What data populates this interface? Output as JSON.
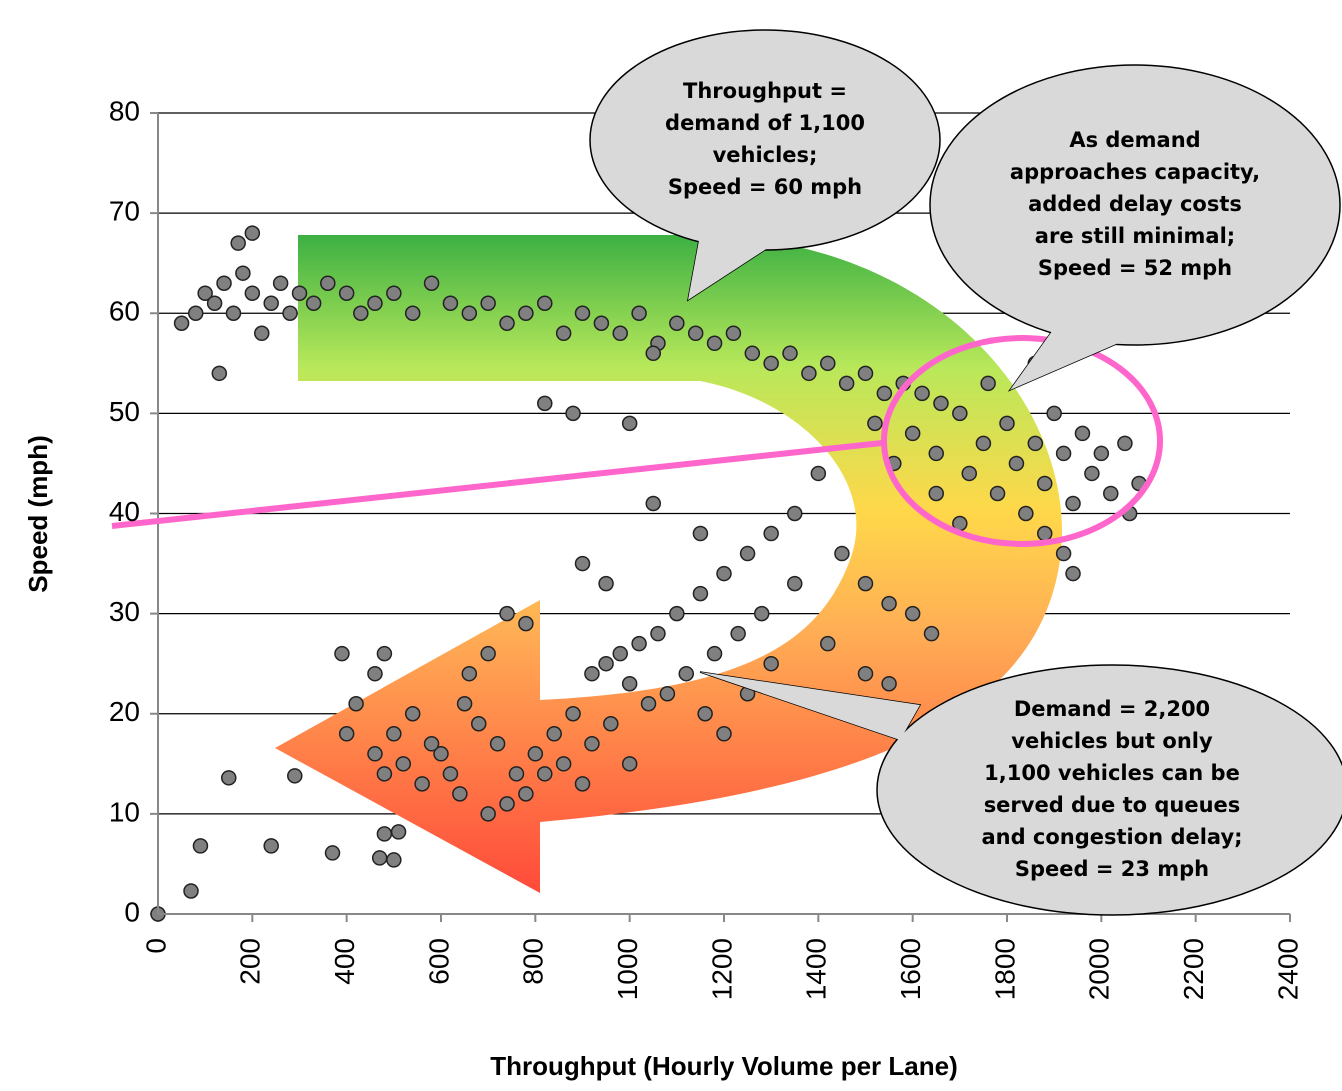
{
  "chart_data": {
    "type": "scatter",
    "xlabel": "Throughput (Hourly Volume per Lane)",
    "ylabel": "Speed (mph)",
    "xlim": [
      0,
      2400
    ],
    "ylim": [
      0,
      80
    ],
    "xticks": [
      0,
      200,
      400,
      600,
      800,
      1000,
      1200,
      1400,
      1600,
      1800,
      2000,
      2200,
      2400
    ],
    "yticks": [
      0,
      10,
      20,
      30,
      40,
      50,
      60,
      70,
      80
    ],
    "grid": true,
    "color": "#808080",
    "x": [
      50,
      80,
      100,
      120,
      140,
      160,
      180,
      200,
      220,
      240,
      260,
      280,
      300,
      330,
      360,
      400,
      430,
      460,
      500,
      540,
      580,
      620,
      660,
      700,
      740,
      780,
      820,
      860,
      900,
      940,
      980,
      1020,
      1060,
      1100,
      1140,
      1180,
      1220,
      1260,
      1300,
      1340,
      1380,
      1420,
      1460,
      1500,
      1540,
      1580,
      1620,
      1660,
      170,
      200,
      130,
      1050,
      820,
      880,
      1000,
      1600,
      1650,
      1700,
      1720,
      1750,
      1780,
      1800,
      1820,
      1840,
      1860,
      1880,
      1900,
      1920,
      1940,
      1960,
      1980,
      2000,
      2020,
      2050,
      2080,
      2060,
      1760,
      1860,
      1700,
      1650,
      1560,
      1520,
      1920,
      1940,
      1880,
      1400,
      1350,
      1300,
      1250,
      1200,
      1150,
      1100,
      1060,
      1020,
      980,
      950,
      920,
      1450,
      1500,
      1550,
      1600,
      1640,
      1280,
      1230,
      1180,
      1120,
      1080,
      1040,
      1000,
      1160,
      1200,
      1500,
      1550,
      1050,
      1150,
      1350,
      1420,
      1250,
      900,
      950,
      1300,
      880,
      840,
      800,
      760,
      720,
      680,
      650,
      620,
      600,
      560,
      520,
      480,
      460,
      500,
      540,
      580,
      640,
      700,
      740,
      780,
      820,
      860,
      900,
      920,
      960,
      1000,
      660,
      700,
      740,
      780,
      480,
      460,
      420,
      400,
      390,
      0,
      70,
      90,
      150,
      240,
      290,
      370,
      480,
      510,
      470,
      500
    ],
    "y": [
      59,
      60,
      62,
      61,
      63,
      60,
      64,
      62,
      58,
      61,
      63,
      60,
      62,
      61,
      63,
      62,
      60,
      61,
      62,
      60,
      63,
      61,
      60,
      61,
      59,
      60,
      61,
      58,
      60,
      59,
      58,
      60,
      57,
      59,
      58,
      57,
      58,
      56,
      55,
      56,
      54,
      55,
      53,
      54,
      52,
      53,
      52,
      51,
      67,
      68,
      54,
      56,
      51,
      50,
      49,
      48,
      46,
      50,
      44,
      47,
      42,
      49,
      45,
      40,
      47,
      43,
      50,
      46,
      41,
      48,
      44,
      46,
      42,
      47,
      43,
      40,
      53,
      55,
      39,
      42,
      45,
      49,
      36,
      34,
      38,
      44,
      40,
      38,
      36,
      34,
      32,
      30,
      28,
      27,
      26,
      25,
      24,
      36,
      33,
      31,
      30,
      28,
      30,
      28,
      26,
      24,
      22,
      21,
      23,
      20,
      18,
      24,
      23,
      41,
      38,
      33,
      27,
      22,
      35,
      33,
      25,
      20,
      18,
      16,
      14,
      17,
      19,
      21,
      14,
      16,
      13,
      15,
      14,
      16,
      18,
      20,
      17,
      12,
      10,
      11,
      12,
      14,
      15,
      13,
      17,
      19,
      15,
      24,
      26,
      30,
      29,
      26,
      24,
      21,
      18,
      26,
      0,
      2.3,
      6.8,
      13.6,
      6.8,
      13.8,
      6.1,
      8,
      8.2,
      5.6,
      5.4
    ],
    "annotations": [
      {
        "lines": [
          "Throughput  =",
          "demand of 1,100",
          "vehicles;",
          "Speed = 60 mph"
        ]
      },
      {
        "lines": [
          "As demand",
          "approaches capacity,",
          "added delay costs",
          "are still minimal;",
          "Speed = 52 mph"
        ]
      },
      {
        "lines": [
          "Demand = 2,200",
          "vehicles but only",
          "1,100 vehicles can be",
          "served due to queues",
          "and congestion delay;",
          "Speed = 23 mph"
        ]
      }
    ]
  }
}
